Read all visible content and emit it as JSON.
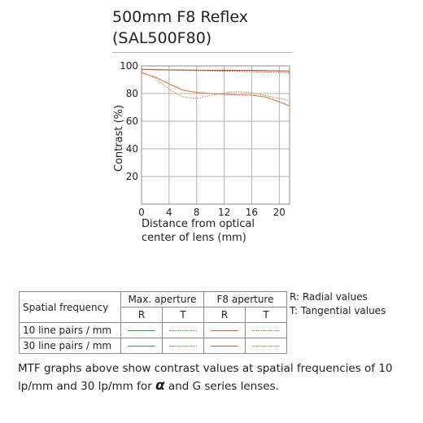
{
  "title": {
    "line1": "500mm F8 Reflex",
    "line2": "(SAL500F80)"
  },
  "chart_data": {
    "type": "line",
    "xlabel_line1": "Distance from optical",
    "xlabel_line2": "center of lens (mm)",
    "ylabel": "Contrast (%)",
    "xlim": [
      0,
      21.5
    ],
    "ylim": [
      0,
      100
    ],
    "xticks": [
      0,
      4,
      8,
      12,
      16,
      20
    ],
    "yticks": [
      20,
      40,
      60,
      80,
      100
    ],
    "grid": true,
    "series": [
      {
        "name": "10 line pairs / mm",
        "aperture": "Max. aperture",
        "direction": "R",
        "color": "#c05a30",
        "dash": "solid",
        "x": [
          0,
          2,
          4,
          6,
          8,
          10,
          12,
          14,
          16,
          18,
          20,
          21.5
        ],
        "y": [
          97.5,
          97.3,
          97.1,
          97.0,
          96.9,
          96.8,
          96.8,
          96.7,
          96.7,
          96.6,
          96.4,
          96.3
        ]
      },
      {
        "name": "10 line pairs / mm",
        "aperture": "Max. aperture",
        "direction": "T",
        "color": "#c05a30",
        "dash": "dotted",
        "x": [
          0,
          2,
          4,
          6,
          8,
          10,
          12,
          14,
          16,
          18,
          20,
          21.5
        ],
        "y": [
          97.5,
          97.2,
          97.0,
          96.8,
          96.6,
          96.4,
          96.2,
          96.0,
          95.8,
          95.6,
          95.3,
          95.0
        ]
      },
      {
        "name": "30 line pairs / mm",
        "aperture": "Max. aperture",
        "direction": "R",
        "color": "#d9824f",
        "dash": "solid",
        "x": [
          0,
          2,
          4,
          6,
          8,
          10,
          12,
          14,
          16,
          18,
          20,
          21.5
        ],
        "y": [
          95.0,
          92.0,
          87.0,
          82.5,
          80.8,
          80.0,
          79.4,
          79.0,
          78.8,
          77.5,
          74.0,
          71.0
        ]
      },
      {
        "name": "30 line pairs / mm",
        "aperture": "Max. aperture",
        "direction": "T",
        "color": "#d9824f",
        "dash": "dotted",
        "x": [
          0,
          2,
          4,
          6,
          8,
          10,
          12,
          14,
          16,
          18,
          20,
          21.5
        ],
        "y": [
          96.0,
          91.0,
          83.0,
          77.5,
          76.5,
          78.5,
          80.5,
          81.5,
          80.5,
          78.5,
          76.5,
          75.0
        ]
      }
    ]
  },
  "legend_table": {
    "header_label": "Spatial frequency",
    "aperture_max": "Max. aperture",
    "aperture_f8": "F8 aperture",
    "radial": "R",
    "tangential": "T",
    "row1_label": "10 line pairs / mm",
    "row2_label": "30 line pairs / mm",
    "sample_colors": {
      "max_aperture": "#3aa64a",
      "f8_aperture": "#d9652d"
    }
  },
  "notes": {
    "radial": "R: Radial values",
    "tangential": "T: Tangential values"
  },
  "caption": {
    "text_before_alpha": "MTF graphs above show contrast values at spatial frequencies of 10 lp/mm and 30 lp/mm for ",
    "alpha_symbol": "α",
    "text_after_alpha": " and G series lenses."
  }
}
